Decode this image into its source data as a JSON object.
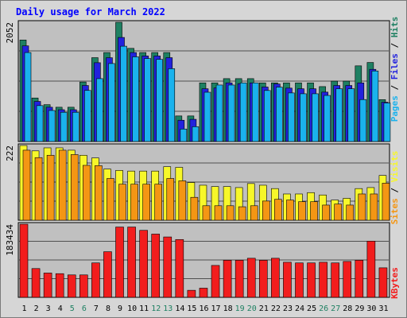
{
  "chart_data": {
    "type": "bar",
    "title": "Daily usage for March 2022",
    "days": [
      "1",
      "2",
      "3",
      "4",
      "5",
      "6",
      "7",
      "8",
      "9",
      "10",
      "11",
      "12",
      "13",
      "14",
      "15",
      "16",
      "17",
      "18",
      "19",
      "20",
      "21",
      "22",
      "23",
      "24",
      "25",
      "26",
      "27",
      "28",
      "29",
      "30",
      "31"
    ],
    "weekend_days": [
      "5",
      "6",
      "12",
      "13",
      "19",
      "20",
      "26",
      "27"
    ],
    "panels": [
      {
        "max_label": "2052",
        "ymax": 2052,
        "series": [
          {
            "name": "Hits",
            "color": "#1e8062",
            "values": [
              1747,
              749,
              634,
              590,
              590,
              1024,
              1443,
              1531,
              2052,
              1603,
              1531,
              1531,
              1531,
              440,
              440,
              1009,
              1009,
              1082,
              1082,
              1082,
              1009,
              1009,
              1009,
              1009,
              1009,
              945,
              1039,
              1039,
              1302,
              1360,
              721
            ]
          },
          {
            "name": "Files",
            "color": "#2222dd",
            "values": [
              1646,
              690,
              590,
              547,
              547,
              964,
              1356,
              1442,
              1791,
              1531,
              1472,
              1472,
              1443,
              366,
              382,
              908,
              922,
              1009,
              996,
              1009,
              938,
              990,
              919,
              908,
              908,
              850,
              964,
              964,
              1009,
              1242,
              677
            ]
          },
          {
            "name": "Pages",
            "color": "#1ab2ed",
            "values": [
              1531,
              618,
              534,
              503,
              503,
              879,
              1082,
              1342,
              1640,
              1457,
              1428,
              1413,
              1253,
              215,
              255,
              848,
              972,
              972,
              1009,
              1009,
              878,
              936,
              836,
              822,
              822,
              793,
              908,
              908,
              722,
              1214,
              663
            ]
          }
        ]
      },
      {
        "max_label": "222",
        "ymax": 222,
        "series": [
          {
            "name": "Visits",
            "color": "#f7f72a",
            "values": [
              222,
              206,
              215,
              215,
              208,
              193,
              185,
              152,
              148,
              146,
              146,
              146,
              159,
              157,
              112,
              104,
              100,
              100,
              97,
              109,
              104,
              94,
              78,
              78,
              82,
              75,
              60,
              65,
              94,
              97,
              133
            ]
          },
          {
            "name": "Sites",
            "color": "#f49614",
            "values": [
              208,
              186,
              193,
              208,
              195,
              163,
              162,
              124,
              107,
              107,
              107,
              107,
              124,
              117,
              68,
              43,
              43,
              43,
              40,
              43,
              57,
              62,
              60,
              55,
              55,
              45,
              48,
              45,
              78,
              78,
              110
            ]
          }
        ]
      },
      {
        "max_label": "183434",
        "ymax": 183434,
        "series": [
          {
            "name": "KBytes",
            "color": "#f21d1d",
            "values": [
              183434,
              72212,
              60979,
              59406,
              56238,
              56238,
              86312,
              114406,
              176310,
              176310,
              168000,
              158634,
              151422,
              145000,
              17660,
              23000,
              80000,
              93000,
              93000,
              98000,
              93000,
              98000,
              88000,
              86300,
              86300,
              88000,
              86300,
              90000,
              93000,
              141000,
              74000
            ]
          }
        ]
      }
    ],
    "legend_right": [
      {
        "text": "Pages",
        "color": "#1ab2ed"
      },
      {
        "text": "Files",
        "color": "#2222dd"
      },
      {
        "text": "Hits",
        "color": "#1e8062"
      },
      {
        "text": "Sites",
        "color": "#f49614"
      },
      {
        "text": "Visits",
        "color": "#f7f72a"
      },
      {
        "text": "KBytes",
        "color": "#f21d1d"
      }
    ],
    "colors": {
      "frame": "#d6d6d6",
      "plot_bg": "#c0c0c0",
      "grid": "#505050",
      "title": "#0000ff",
      "axis_label": "#000000",
      "weekday": "#000000",
      "weekend": "#1e8062"
    }
  }
}
